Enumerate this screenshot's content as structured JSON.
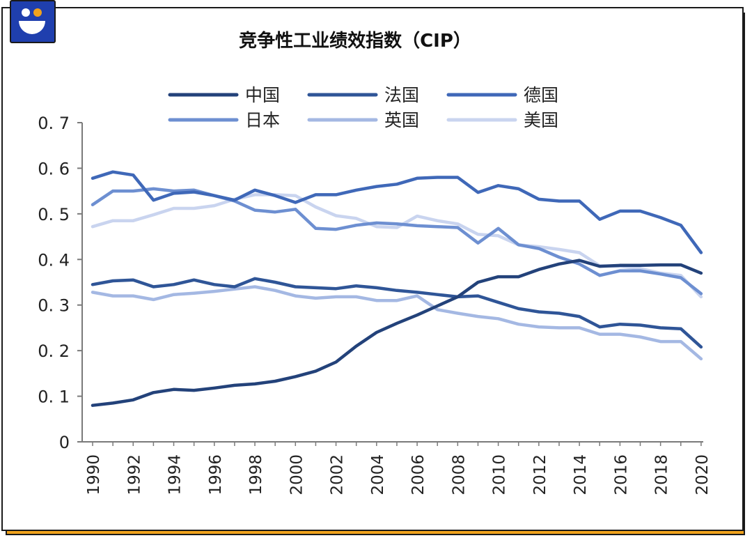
{
  "chart_data": {
    "type": "line",
    "title": "竞争性工业绩效指数（CIP）",
    "xlabel": "",
    "ylabel": "",
    "ylim": [
      0,
      0.7
    ],
    "yticks": [
      "0",
      "0. 1",
      "0. 2",
      "0. 3",
      "0. 4",
      "0. 5",
      "0. 6",
      "0. 7"
    ],
    "ytick_values": [
      0,
      0.1,
      0.2,
      0.3,
      0.4,
      0.5,
      0.6,
      0.7
    ],
    "x": [
      1990,
      1991,
      1992,
      1993,
      1994,
      1995,
      1996,
      1997,
      1998,
      1999,
      2000,
      2001,
      2002,
      2003,
      2004,
      2005,
      2006,
      2007,
      2008,
      2009,
      2010,
      2011,
      2012,
      2013,
      2014,
      2015,
      2016,
      2017,
      2018,
      2019,
      2020
    ],
    "xtick_labels": [
      "1990",
      "1992",
      "1994",
      "1996",
      "1998",
      "2000",
      "2002",
      "2004",
      "2006",
      "2008",
      "2010",
      "2012",
      "2014",
      "2016",
      "2018",
      "2020"
    ],
    "legend_position": "top",
    "series": [
      {
        "name": "中国",
        "color": "#23427a",
        "values": [
          0.08,
          0.085,
          0.092,
          0.108,
          0.115,
          0.113,
          0.118,
          0.124,
          0.127,
          0.133,
          0.143,
          0.155,
          0.175,
          0.21,
          0.24,
          0.26,
          0.278,
          0.298,
          0.318,
          0.35,
          0.362,
          0.362,
          0.378,
          0.39,
          0.398,
          0.385,
          0.387,
          0.387,
          0.388,
          0.388,
          0.37
        ]
      },
      {
        "name": "法国",
        "color": "#2f5597",
        "values": [
          0.345,
          0.353,
          0.355,
          0.34,
          0.345,
          0.355,
          0.345,
          0.34,
          0.358,
          0.35,
          0.34,
          0.338,
          0.336,
          0.342,
          0.338,
          0.332,
          0.328,
          0.323,
          0.318,
          0.32,
          0.306,
          0.292,
          0.285,
          0.282,
          0.275,
          0.252,
          0.258,
          0.256,
          0.25,
          0.248,
          0.208
        ]
      },
      {
        "name": "德国",
        "color": "#3f68b8",
        "values": [
          0.578,
          0.592,
          0.585,
          0.53,
          0.545,
          0.548,
          0.54,
          0.53,
          0.552,
          0.54,
          0.525,
          0.542,
          0.542,
          0.552,
          0.56,
          0.565,
          0.578,
          0.58,
          0.58,
          0.547,
          0.562,
          0.555,
          0.532,
          0.528,
          0.528,
          0.488,
          0.506,
          0.506,
          0.492,
          0.475,
          0.415
        ]
      },
      {
        "name": "日本",
        "color": "#6d8fd1",
        "values": [
          0.52,
          0.55,
          0.55,
          0.555,
          0.55,
          0.552,
          0.54,
          0.528,
          0.508,
          0.504,
          0.51,
          0.468,
          0.466,
          0.475,
          0.48,
          0.478,
          0.474,
          0.472,
          0.47,
          0.436,
          0.468,
          0.432,
          0.424,
          0.405,
          0.39,
          0.365,
          0.375,
          0.375,
          0.368,
          0.36,
          0.325
        ]
      },
      {
        "name": "英国",
        "color": "#a4b8e3",
        "values": [
          0.328,
          0.32,
          0.32,
          0.312,
          0.323,
          0.326,
          0.33,
          0.335,
          0.34,
          0.332,
          0.32,
          0.315,
          0.318,
          0.318,
          0.31,
          0.31,
          0.32,
          0.29,
          0.282,
          0.275,
          0.27,
          0.258,
          0.252,
          0.25,
          0.25,
          0.236,
          0.236,
          0.23,
          0.22,
          0.22,
          0.182
        ]
      },
      {
        "name": "美国",
        "color": "#c9d4ef",
        "values": [
          0.472,
          0.485,
          0.485,
          0.498,
          0.512,
          0.512,
          0.518,
          0.532,
          0.542,
          0.542,
          0.54,
          0.515,
          0.496,
          0.49,
          0.472,
          0.47,
          0.495,
          0.485,
          0.478,
          0.455,
          0.452,
          0.432,
          0.428,
          0.422,
          0.415,
          0.386,
          0.385,
          0.38,
          0.37,
          0.365,
          0.318
        ]
      }
    ]
  }
}
